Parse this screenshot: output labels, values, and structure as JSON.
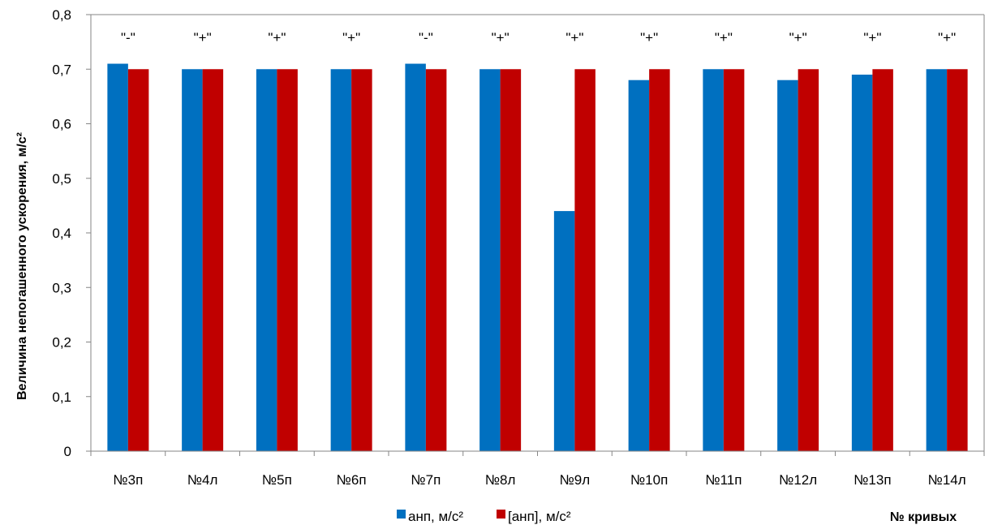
{
  "chart_data": {
    "type": "bar",
    "categories": [
      "№3п",
      "№4л",
      "№5п",
      "№6п",
      "№7п",
      "№8л",
      "№9л",
      "№10п",
      "№11п",
      "№12л",
      "№13п",
      "№14л"
    ],
    "series": [
      {
        "name": "анп, м/с²",
        "color": "#0070C0",
        "values": [
          0.71,
          0.7,
          0.7,
          0.7,
          0.71,
          0.7,
          0.44,
          0.68,
          0.7,
          0.68,
          0.69,
          0.7
        ]
      },
      {
        "name": "[анп], м/с²",
        "color": "#C00000",
        "values": [
          0.7,
          0.7,
          0.7,
          0.7,
          0.7,
          0.7,
          0.7,
          0.7,
          0.7,
          0.7,
          0.7,
          0.7
        ]
      }
    ],
    "annotations": [
      "\"-\"",
      "\"+\"",
      "\"+\"",
      "\"+\"",
      "\"-\"",
      "\"+\"",
      "\"+\"",
      "\"+\"",
      "\"+\"",
      "\"+\"",
      "\"+\"",
      "\"+\""
    ],
    "ylabel": "Величина непогашенного ускорения, м/с²",
    "xlabel": "№ кривых",
    "ylim": [
      0,
      0.8
    ],
    "yticks": [
      "0",
      "0,1",
      "0,2",
      "0,3",
      "0,4",
      "0,5",
      "0,6",
      "0,7",
      "0,8"
    ],
    "grid": false,
    "legend": "bottom"
  }
}
